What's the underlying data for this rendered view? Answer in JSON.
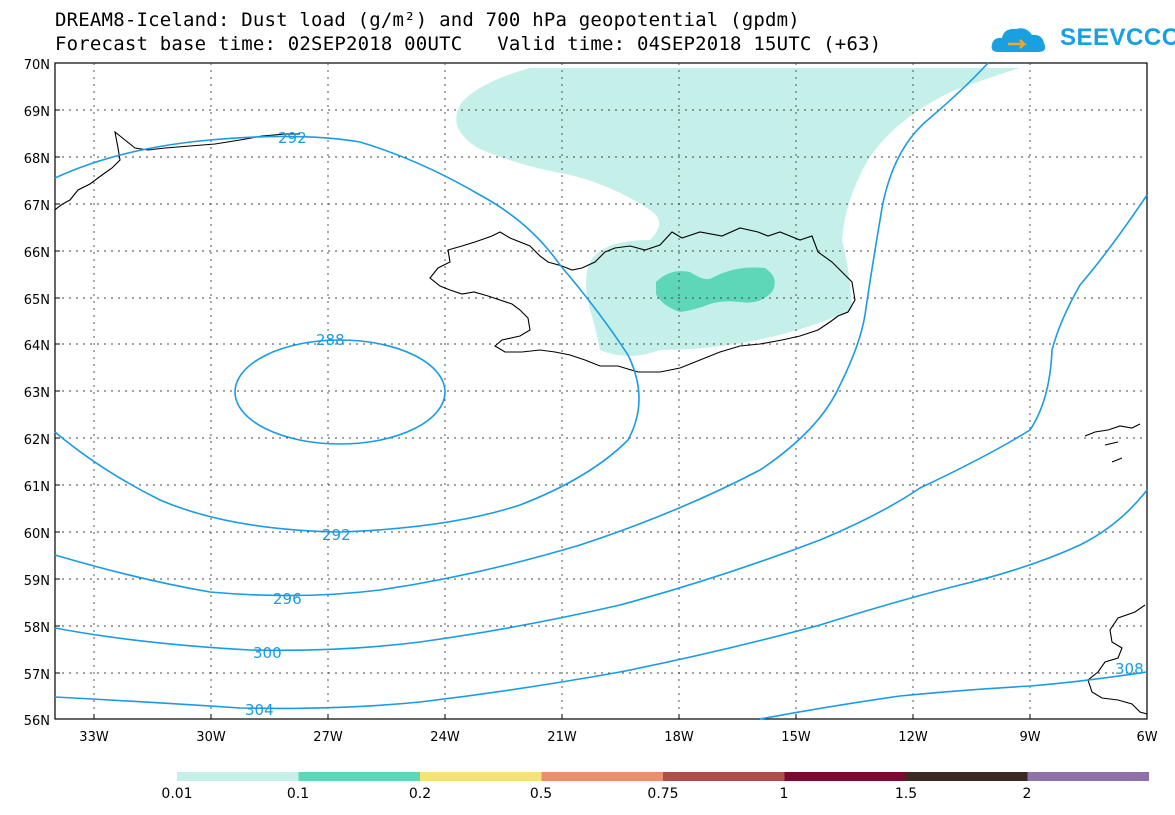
{
  "header": {
    "title_line1": "DREAM8-Iceland: Dust load (g/m²) and 700 hPa geopotential (gpdm)",
    "title_line2": "Forecast base time: 02SEP2018 00UTC   Valid time: 04SEP2018 15UTC (+63)"
  },
  "logo": {
    "text": "SEEVCCC",
    "icon": "cloud-icon"
  },
  "map": {
    "lat_labels": [
      "70N",
      "69N",
      "68N",
      "67N",
      "66N",
      "65N",
      "64N",
      "63N",
      "62N",
      "61N",
      "60N",
      "59N",
      "58N",
      "57N",
      "56N"
    ],
    "lon_labels": [
      "33W",
      "30W",
      "27W",
      "24W",
      "21W",
      "18W",
      "15W",
      "12W",
      "9W",
      "6W"
    ],
    "contour_labels": [
      "292",
      "288",
      "292",
      "296",
      "300",
      "304",
      "308"
    ],
    "contour_color": "#1a9be6",
    "coast_color": "#000000"
  },
  "legend": {
    "colors": [
      "#c5f0ea",
      "#5ed6b8",
      "#f5e27a",
      "#e8906a",
      "#a8504a",
      "#7a0a30",
      "#3a2a22",
      "#9070a8"
    ],
    "labels": [
      "0.01",
      "0.1",
      "0.2",
      "0.5",
      "0.75",
      "1",
      "1.5",
      "2"
    ]
  }
}
